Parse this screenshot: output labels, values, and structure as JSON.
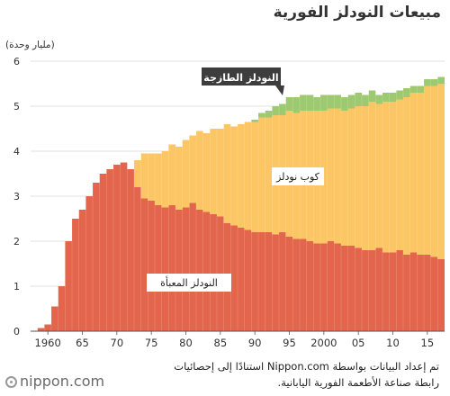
{
  "source_note": "تم إعداد البيانات بواسطة Nippon.com استنادًا إلى إحصائيات رابطة صناعة الأطعمة الفورية اليابانية.",
  "logo_text": "nippon.com",
  "chart_data": {
    "type": "area",
    "stacked": true,
    "title": "مبيعات النودلز الفورية",
    "ylabel": "(مليار وحدة)",
    "ylim": [
      0,
      6
    ],
    "yticks": [
      0,
      1,
      2,
      3,
      4,
      5,
      6
    ],
    "xlim": [
      1957.5,
      2017.5
    ],
    "xtick_values": [
      1960,
      1965,
      1970,
      1975,
      1980,
      1985,
      1990,
      1995,
      2000,
      2005,
      2010,
      2015
    ],
    "xtick_labels": [
      "1960",
      "65",
      "70",
      "75",
      "80",
      "85",
      "90",
      "95",
      "2000",
      "05",
      "10",
      "15"
    ],
    "grid": "horizontal",
    "x": [
      1958,
      1959,
      1960,
      1961,
      1962,
      1963,
      1964,
      1965,
      1966,
      1967,
      1968,
      1969,
      1970,
      1971,
      1972,
      1973,
      1974,
      1975,
      1976,
      1977,
      1978,
      1979,
      1980,
      1981,
      1982,
      1983,
      1984,
      1985,
      1986,
      1987,
      1988,
      1989,
      1990,
      1991,
      1992,
      1993,
      1994,
      1995,
      1996,
      1997,
      1998,
      1999,
      2000,
      2001,
      2002,
      2003,
      2004,
      2005,
      2006,
      2007,
      2008,
      2009,
      2010,
      2011,
      2012,
      2013,
      2014,
      2015,
      2016,
      2017
    ],
    "series": [
      {
        "name": "النودلز المعبأة",
        "color": "#e3654c",
        "values": [
          0.01,
          0.07,
          0.15,
          0.55,
          1.0,
          2.0,
          2.5,
          2.7,
          3.0,
          3.3,
          3.5,
          3.6,
          3.7,
          3.75,
          3.6,
          3.2,
          2.95,
          2.9,
          2.8,
          2.75,
          2.8,
          2.7,
          2.75,
          2.85,
          2.7,
          2.65,
          2.6,
          2.55,
          2.4,
          2.35,
          2.3,
          2.25,
          2.2,
          2.2,
          2.2,
          2.15,
          2.2,
          2.1,
          2.05,
          2.05,
          2.0,
          1.95,
          1.95,
          2.0,
          1.95,
          1.9,
          1.9,
          1.85,
          1.8,
          1.8,
          1.85,
          1.75,
          1.75,
          1.8,
          1.7,
          1.75,
          1.7,
          1.7,
          1.65,
          1.6
        ]
      },
      {
        "name": "كوب نودلز",
        "color": "#fbc663",
        "values": [
          0,
          0,
          0,
          0,
          0,
          0,
          0,
          0,
          0,
          0,
          0,
          0,
          0,
          0,
          0,
          0.6,
          1.0,
          1.05,
          1.15,
          1.25,
          1.35,
          1.4,
          1.5,
          1.5,
          1.75,
          1.75,
          1.9,
          1.95,
          2.2,
          2.2,
          2.3,
          2.4,
          2.45,
          2.55,
          2.55,
          2.65,
          2.6,
          2.8,
          2.8,
          2.85,
          2.9,
          2.95,
          2.95,
          2.95,
          3.0,
          3.0,
          3.05,
          3.15,
          3.2,
          3.3,
          3.2,
          3.35,
          3.35,
          3.35,
          3.5,
          3.55,
          3.6,
          3.75,
          3.8,
          3.9
        ]
      },
      {
        "name": "النودلز الطازجة",
        "color": "#9dc971",
        "values": [
          0,
          0,
          0,
          0,
          0,
          0,
          0,
          0,
          0,
          0,
          0,
          0,
          0,
          0,
          0,
          0,
          0,
          0,
          0,
          0,
          0,
          0,
          0,
          0,
          0,
          0,
          0,
          0,
          0,
          0,
          0,
          0,
          0.05,
          0.1,
          0.15,
          0.2,
          0.25,
          0.3,
          0.35,
          0.35,
          0.35,
          0.3,
          0.35,
          0.3,
          0.3,
          0.3,
          0.3,
          0.3,
          0.25,
          0.25,
          0.2,
          0.2,
          0.2,
          0.2,
          0.2,
          0.15,
          0.15,
          0.15,
          0.15,
          0.15
        ]
      }
    ],
    "annotations": [
      {
        "text": "النودلز الطازجة",
        "style": "callout"
      },
      {
        "text": "كوب نودلز",
        "style": "label"
      },
      {
        "text": "النودلز المعبأة",
        "style": "label"
      }
    ]
  }
}
